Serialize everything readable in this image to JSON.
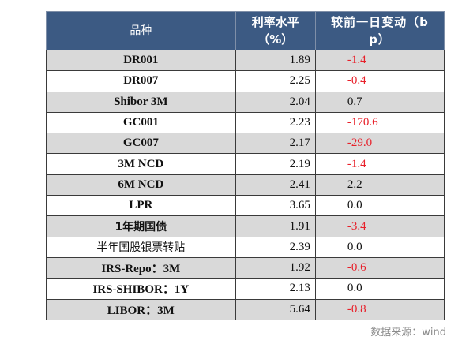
{
  "table": {
    "headers": {
      "product": "品种",
      "rate_line1": "利率水平",
      "rate_line2": "（%）",
      "change_line1": "较前一日变动（b",
      "change_line2": "p）"
    },
    "rows": [
      {
        "name": "DR001",
        "rate": "1.89",
        "change": "-1.4",
        "negative": true,
        "shaded": true
      },
      {
        "name": "DR007",
        "rate": "2.25",
        "change": "-0.4",
        "negative": true,
        "shaded": false
      },
      {
        "name": "Shibor 3M",
        "rate": "2.04",
        "change": "0.7",
        "negative": false,
        "shaded": true
      },
      {
        "name": "GC001",
        "rate": "2.23",
        "change": "-170.6",
        "negative": true,
        "shaded": false
      },
      {
        "name": "GC007",
        "rate": "2.17",
        "change": "-29.0",
        "negative": true,
        "shaded": true
      },
      {
        "name": "3M NCD",
        "rate": "2.19",
        "change": "-1.4",
        "negative": true,
        "shaded": false
      },
      {
        "name": "6M NCD",
        "rate": "2.41",
        "change": "2.2",
        "negative": false,
        "shaded": true
      },
      {
        "name": "LPR",
        "rate": "3.65",
        "change": "0.0",
        "negative": false,
        "shaded": false
      },
      {
        "name": "1年期国债",
        "rate": "1.91",
        "change": "-3.4",
        "negative": true,
        "shaded": true,
        "cjk": true
      },
      {
        "name": "半年国股银票转贴",
        "rate": "2.39",
        "change": "0.0",
        "negative": false,
        "shaded": false,
        "cjk": true,
        "light": true
      },
      {
        "name": "IRS-Repo：3M",
        "rate": "1.92",
        "change": "-0.6",
        "negative": true,
        "shaded": true
      },
      {
        "name": "IRS-SHIBOR：1Y",
        "rate": "2.13",
        "change": "0.0",
        "negative": false,
        "shaded": false
      },
      {
        "name": "LIBOR：3M",
        "rate": "5.64",
        "change": "-0.8",
        "negative": true,
        "shaded": true
      }
    ]
  },
  "source": "数据来源：wind",
  "colors": {
    "header_bg": "#3c5a83",
    "shaded_row": "#d9d9d9",
    "negative": "#e8202a"
  }
}
